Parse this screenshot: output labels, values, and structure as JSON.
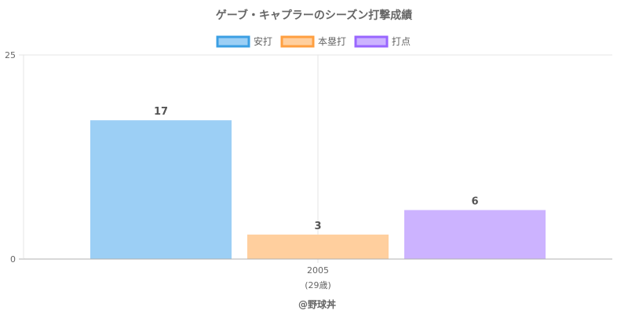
{
  "chart_data": {
    "type": "bar",
    "title": "ゲーブ・キャプラーのシーズン打撃成績",
    "categories": [
      "2005"
    ],
    "category_sublabels": [
      "(29歳)"
    ],
    "series": [
      {
        "name": "安打",
        "values": [
          17
        ],
        "fill": "#9ccff5",
        "stroke": "#3b9fe3"
      },
      {
        "name": "本塁打",
        "values": [
          3
        ],
        "fill": "#ffcf9e",
        "stroke": "#ff9f40"
      },
      {
        "name": "打点",
        "values": [
          6
        ],
        "fill": "#ccb3ff",
        "stroke": "#9966ff"
      }
    ],
    "ylim": [
      0,
      25
    ],
    "yticks": [
      0,
      25
    ],
    "grid": true,
    "legend_position": "top",
    "show_data_labels": true
  },
  "footer": "@野球丼"
}
